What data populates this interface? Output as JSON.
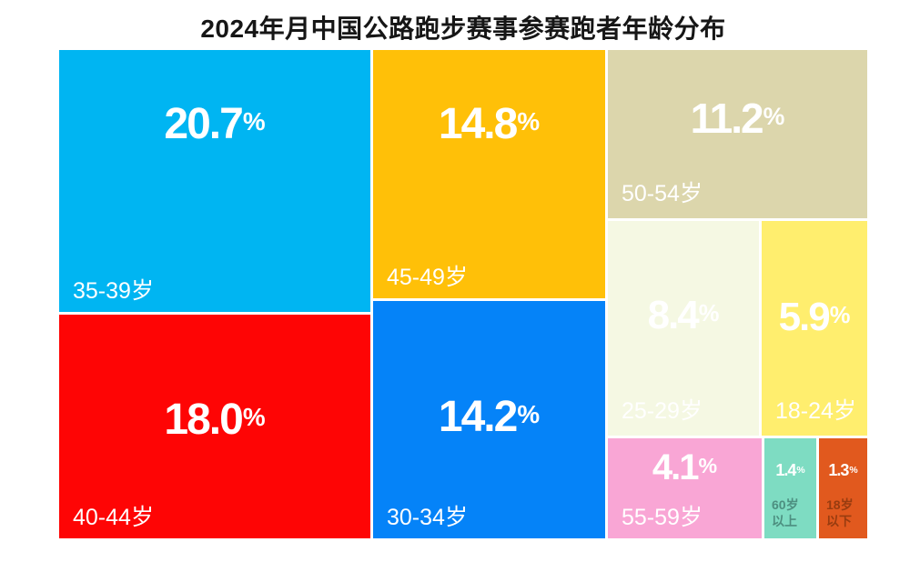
{
  "page": {
    "background": "#FFFFFF"
  },
  "chart_data": {
    "type": "treemap",
    "title": "2024年月中国公路跑步赛事参赛跑者年龄分布",
    "unit": "%",
    "legend_position": "none",
    "tiles": [
      {
        "label": "35-39岁",
        "value": 20.7,
        "pct": "20.7",
        "color": "#00B5F2",
        "text_color": "#FFFFFF",
        "label_color": "#FFFFFF"
      },
      {
        "label": "40-44岁",
        "value": 18.0,
        "pct": "18.0",
        "color": "#FE0505",
        "text_color": "#FFFFFF",
        "label_color": "#FFFFFF"
      },
      {
        "label": "45-49岁",
        "value": 14.8,
        "pct": "14.8",
        "color": "#FFC008",
        "text_color": "#FFFFFF",
        "label_color": "#FFFFFF"
      },
      {
        "label": "30-34岁",
        "value": 14.2,
        "pct": "14.2",
        "color": "#0583F8",
        "text_color": "#FFFFFF",
        "label_color": "#FFFFFF"
      },
      {
        "label": "50-54岁",
        "value": 11.2,
        "pct": "11.2",
        "color": "#DCD6AC",
        "text_color": "#FFFFFF",
        "label_color": "#FFFFFF"
      },
      {
        "label": "25-29岁",
        "value": 8.4,
        "pct": "8.4",
        "color": "#F5F8E3",
        "text_color": "#FFFFFF",
        "label_color": "#FFFFFF"
      },
      {
        "label": "18-24岁",
        "value": 5.9,
        "pct": "5.9",
        "color": "#FFEE6E",
        "text_color": "#FFFFFF",
        "label_color": "#FFFFFF"
      },
      {
        "label": "55-59岁",
        "value": 4.1,
        "pct": "4.1",
        "color": "#F9A6D5",
        "text_color": "#FFFFFF",
        "label_color": "#FFFFFF"
      },
      {
        "label": "60岁以上",
        "value": 1.4,
        "pct": "1.4",
        "color": "#7EDCC2",
        "text_color": "#FFFFFF",
        "label_color": "#4D8F80"
      },
      {
        "label": "18岁以下",
        "value": 1.3,
        "pct": "1.3",
        "color": "#E1591E",
        "text_color": "#FFFFFF",
        "label_color": "#983C10"
      }
    ]
  }
}
